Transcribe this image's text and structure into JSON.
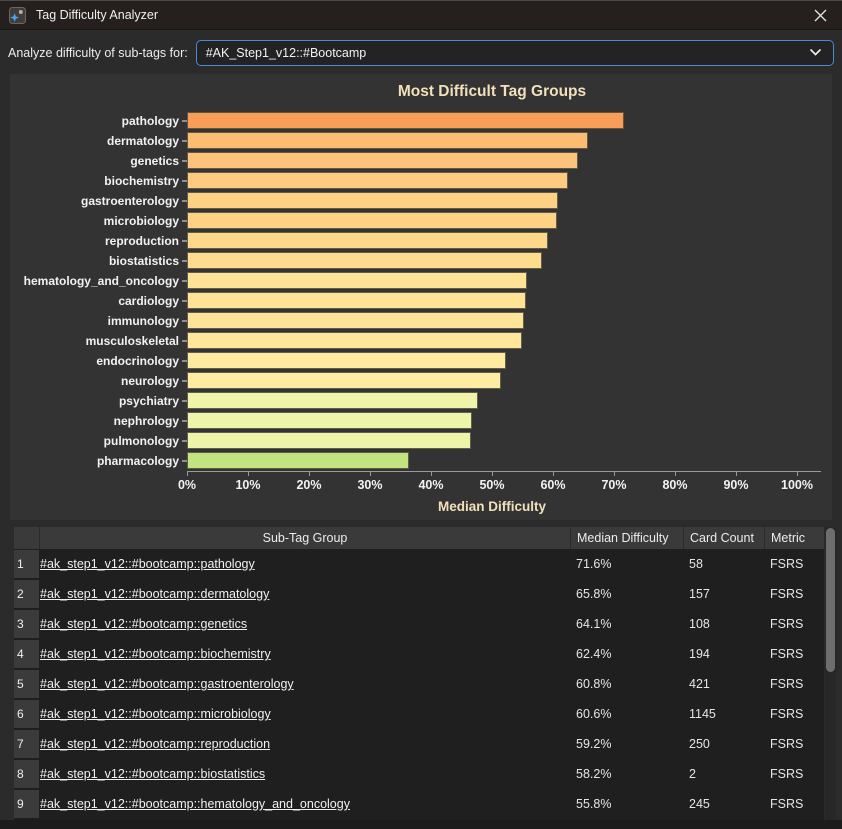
{
  "window": {
    "title": "Tag Difficulty Analyzer"
  },
  "controls": {
    "label": "Analyze difficulty of sub-tags for:",
    "dropdown_value": "#AK_Step1_v12::#Bootcamp"
  },
  "chart_data": {
    "type": "bar",
    "orientation": "horizontal",
    "title": "Most Difficult Tag Groups",
    "xlabel": "Median Difficulty",
    "xlim": [
      0,
      100
    ],
    "grid": false,
    "x_ticks": [
      "0%",
      "10%",
      "20%",
      "30%",
      "40%",
      "50%",
      "60%",
      "70%",
      "80%",
      "90%",
      "100%"
    ],
    "categories": [
      "pathology",
      "dermatology",
      "genetics",
      "biochemistry",
      "gastroenterology",
      "microbiology",
      "reproduction",
      "biostatistics",
      "hematology_and_oncology",
      "cardiology",
      "immunology",
      "musculoskeletal",
      "endocrinology",
      "neurology",
      "psychiatry",
      "nephrology",
      "pulmonology",
      "pharmacology"
    ],
    "values": [
      71.6,
      65.8,
      64.1,
      62.4,
      60.8,
      60.6,
      59.2,
      58.2,
      55.8,
      55.6,
      55.2,
      54.9,
      52.3,
      51.5,
      47.7,
      46.8,
      46.6,
      36.4
    ],
    "bar_colors": [
      "#f99e57",
      "#fcbd73",
      "#fcc37a",
      "#fdca80",
      "#fdd184",
      "#fdd285",
      "#fdd88a",
      "#fddc8e",
      "#fee295",
      "#fee396",
      "#fee498",
      "#fee69a",
      "#feeba0",
      "#feeca2",
      "#f2f3ab",
      "#eef4a9",
      "#eef4a8",
      "#c3e381"
    ]
  },
  "table": {
    "columns": {
      "tag": "Sub-Tag Group",
      "median_difficulty": "Median Difficulty",
      "card_count": "Card Count",
      "metric": "Metric"
    },
    "rows": [
      {
        "index": "1",
        "tag": "#ak_step1_v12::#bootcamp::pathology",
        "median_difficulty": "71.6%",
        "card_count": "58",
        "metric": "FSRS"
      },
      {
        "index": "2",
        "tag": "#ak_step1_v12::#bootcamp::dermatology",
        "median_difficulty": "65.8%",
        "card_count": "157",
        "metric": "FSRS"
      },
      {
        "index": "3",
        "tag": "#ak_step1_v12::#bootcamp::genetics",
        "median_difficulty": "64.1%",
        "card_count": "108",
        "metric": "FSRS"
      },
      {
        "index": "4",
        "tag": "#ak_step1_v12::#bootcamp::biochemistry",
        "median_difficulty": "62.4%",
        "card_count": "194",
        "metric": "FSRS"
      },
      {
        "index": "5",
        "tag": "#ak_step1_v12::#bootcamp::gastroenterology",
        "median_difficulty": "60.8%",
        "card_count": "421",
        "metric": "FSRS"
      },
      {
        "index": "6",
        "tag": "#ak_step1_v12::#bootcamp::microbiology",
        "median_difficulty": "60.6%",
        "card_count": "1145",
        "metric": "FSRS"
      },
      {
        "index": "7",
        "tag": "#ak_step1_v12::#bootcamp::reproduction",
        "median_difficulty": "59.2%",
        "card_count": "250",
        "metric": "FSRS"
      },
      {
        "index": "8",
        "tag": "#ak_step1_v12::#bootcamp::biostatistics",
        "median_difficulty": "58.2%",
        "card_count": "2",
        "metric": "FSRS"
      },
      {
        "index": "9",
        "tag": "#ak_step1_v12::#bootcamp::hematology_and_oncology",
        "median_difficulty": "55.8%",
        "card_count": "245",
        "metric": "FSRS"
      }
    ]
  },
  "colors": {
    "accent_border": "#4a8bd8",
    "chart_text": "#f2e0ba",
    "panel_bg": "#333333",
    "titlebar_bg": "#251f1e",
    "table_header_bg": "#3a3a3a",
    "table_bg": "#1f1f1f"
  }
}
